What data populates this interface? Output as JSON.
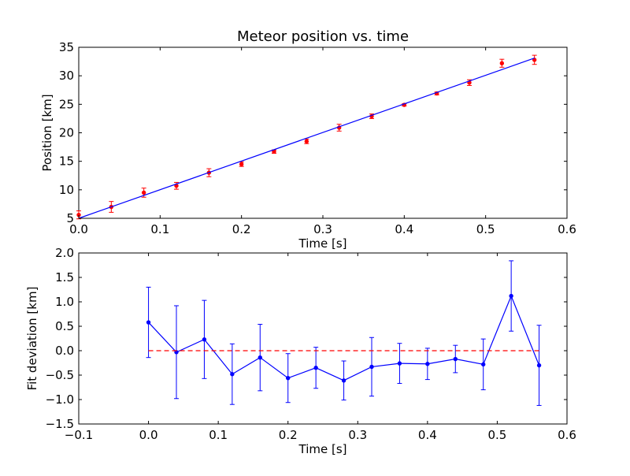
{
  "colors": {
    "fit_line": "#0000ff",
    "data_points": "#ff0000",
    "residual_line": "#0000ff",
    "zero_reference": "#ff0000",
    "axes": "#000000",
    "background": "#ffffff"
  },
  "chart_data": [
    {
      "type": "scatter",
      "title": "Meteor position vs. time",
      "xlabel": "Time [s]",
      "ylabel": "Position [km]",
      "xlim": [
        0.0,
        0.6
      ],
      "ylim": [
        5,
        35
      ],
      "xticks": [
        0.0,
        0.1,
        0.2,
        0.3,
        0.4,
        0.5,
        0.6
      ],
      "xtick_labels": [
        "0.0",
        "0.1",
        "0.2",
        "0.3",
        "0.4",
        "0.5",
        "0.6"
      ],
      "yticks": [
        5,
        10,
        15,
        20,
        25,
        30,
        35
      ],
      "ytick_labels": [
        "5",
        "10",
        "15",
        "20",
        "25",
        "30",
        "35"
      ],
      "grid": false,
      "series": [
        {
          "kind": "errorbar-points",
          "color": "#ff0000",
          "x": [
            0.0,
            0.04,
            0.08,
            0.12,
            0.16,
            0.2,
            0.24,
            0.28,
            0.32,
            0.36,
            0.4,
            0.44,
            0.48,
            0.52,
            0.56
          ],
          "y": [
            5.6,
            7.0,
            9.5,
            10.7,
            13.0,
            14.5,
            16.7,
            18.5,
            20.9,
            22.9,
            24.9,
            26.9,
            28.8,
            32.2,
            32.8
          ],
          "yerr": [
            0.7,
            0.95,
            0.8,
            0.6,
            0.7,
            0.4,
            0.3,
            0.4,
            0.6,
            0.4,
            0.2,
            0.25,
            0.5,
            0.7,
            0.8
          ]
        },
        {
          "kind": "fit-line",
          "color": "#0000ff",
          "x": [
            0.0,
            0.56
          ],
          "y": [
            5.0,
            33.1
          ]
        }
      ]
    },
    {
      "type": "line",
      "title": "",
      "xlabel": "Time [s]",
      "ylabel": "Fit deviation [km]",
      "xlim": [
        -0.1,
        0.6
      ],
      "ylim": [
        -1.5,
        2.0
      ],
      "xticks": [
        -0.1,
        0.0,
        0.1,
        0.2,
        0.3,
        0.4,
        0.5,
        0.6
      ],
      "xtick_labels": [
        "−0.1",
        "0.0",
        "0.1",
        "0.2",
        "0.3",
        "0.4",
        "0.5",
        "0.6"
      ],
      "yticks": [
        -1.5,
        -1.0,
        -0.5,
        0.0,
        0.5,
        1.0,
        1.5,
        2.0
      ],
      "ytick_labels": [
        "−1.5",
        "−1.0",
        "−0.5",
        "0.0",
        "0.5",
        "1.0",
        "1.5",
        "2.0"
      ],
      "grid": false,
      "series": [
        {
          "kind": "errorbar-line",
          "color": "#0000ff",
          "x": [
            0.0,
            0.04,
            0.08,
            0.12,
            0.16,
            0.2,
            0.24,
            0.28,
            0.32,
            0.36,
            0.4,
            0.44,
            0.48,
            0.52,
            0.56
          ],
          "y": [
            0.58,
            -0.03,
            0.23,
            -0.48,
            -0.14,
            -0.56,
            -0.35,
            -0.61,
            -0.33,
            -0.26,
            -0.27,
            -0.17,
            -0.28,
            1.12,
            -0.3
          ],
          "yerr": [
            0.72,
            0.95,
            0.8,
            0.62,
            0.68,
            0.5,
            0.42,
            0.4,
            0.6,
            0.41,
            0.32,
            0.28,
            0.52,
            0.72,
            0.82
          ]
        },
        {
          "kind": "reference-line",
          "color": "#ff0000",
          "dashed": true,
          "x": [
            0.0,
            0.56
          ],
          "y": [
            0.0,
            0.0
          ]
        }
      ]
    }
  ]
}
